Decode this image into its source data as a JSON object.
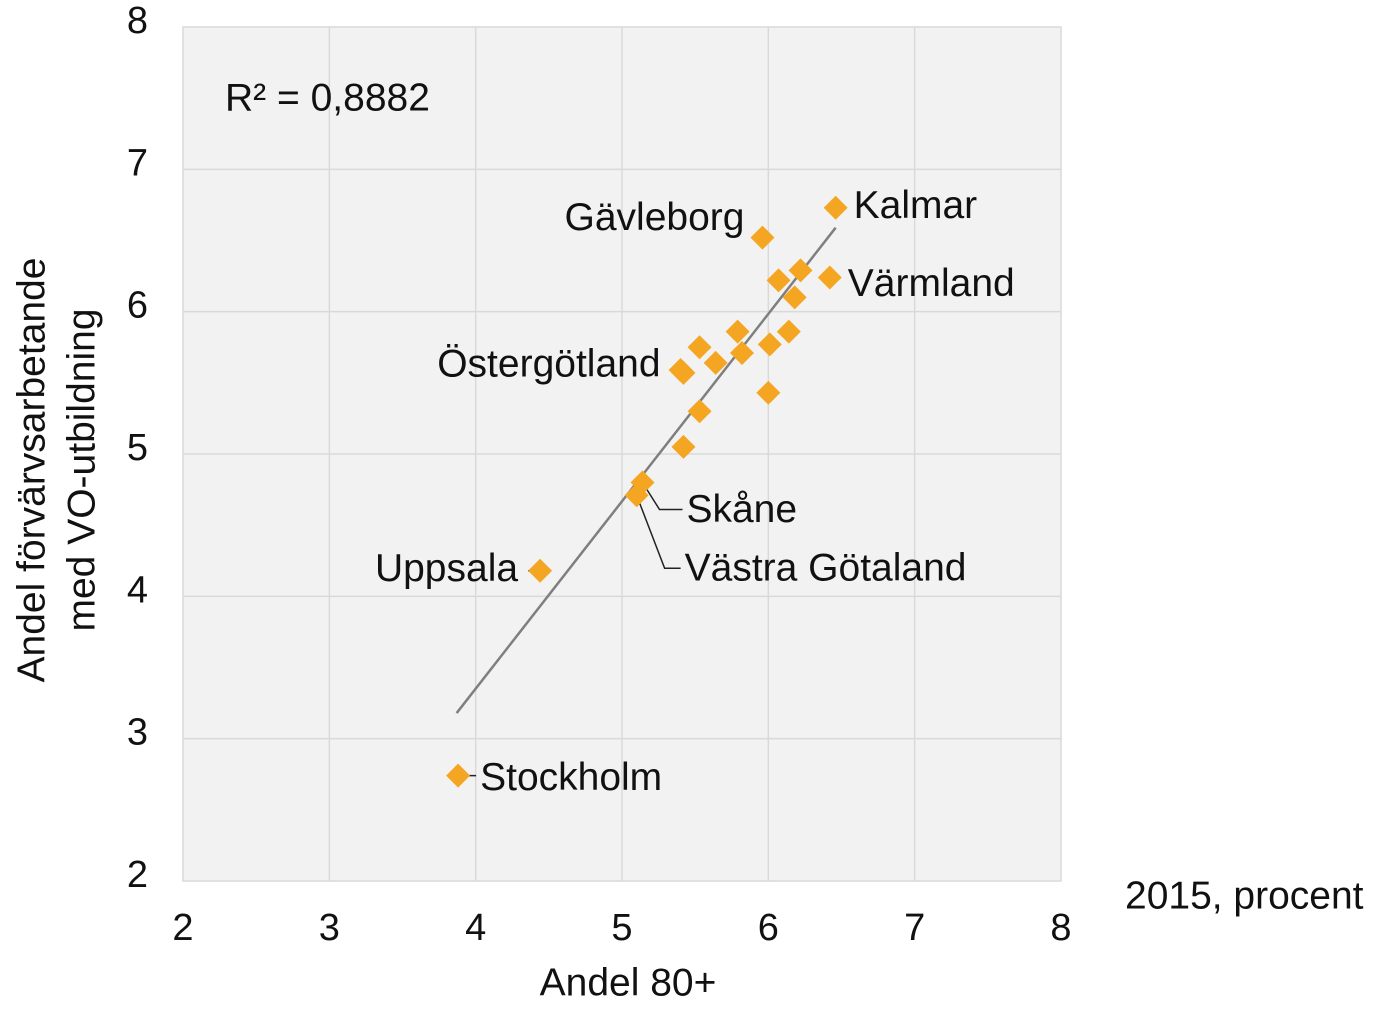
{
  "chart_data": {
    "type": "scatter",
    "annotation": "R² = 0,8882",
    "note": "2015, procent",
    "xlabel": "Andel 80+",
    "ylabel": [
      "Andel förvärvsarbetande",
      "med VO-utbildning"
    ],
    "x": [
      6.46,
      5.96,
      6.22,
      6.07,
      6.42,
      6.18,
      5.79,
      6.14,
      5.53,
      6.01,
      5.64,
      5.82,
      5.4,
      5.42,
      6.0,
      5.53,
      5.42,
      5.14,
      5.1,
      4.44,
      3.88
    ],
    "values": [
      6.73,
      6.52,
      6.29,
      6.22,
      6.24,
      6.1,
      5.86,
      5.86,
      5.75,
      5.77,
      5.64,
      5.71,
      5.59,
      5.57,
      5.43,
      5.3,
      5.05,
      4.8,
      4.71,
      4.18,
      2.74
    ],
    "labels": [
      "Kalmar",
      "Gävleborg",
      null,
      null,
      "Värmland",
      null,
      null,
      null,
      null,
      null,
      null,
      null,
      "Östergötland",
      null,
      null,
      null,
      null,
      "Skåne",
      "Västra Götaland",
      "Uppsala",
      "Stockholm"
    ],
    "color": "#f4a623",
    "trendline": {
      "x": [
        3.87,
        6.46
      ],
      "y": [
        3.18,
        6.59
      ],
      "color": "#7f7f7f"
    },
    "xlim": [
      2,
      8
    ],
    "ylim": [
      2,
      8
    ],
    "xticks": [
      2,
      3,
      4,
      5,
      6,
      7,
      8
    ],
    "yticks": [
      2,
      3,
      4,
      5,
      6,
      7,
      8
    ],
    "grid": true
  }
}
